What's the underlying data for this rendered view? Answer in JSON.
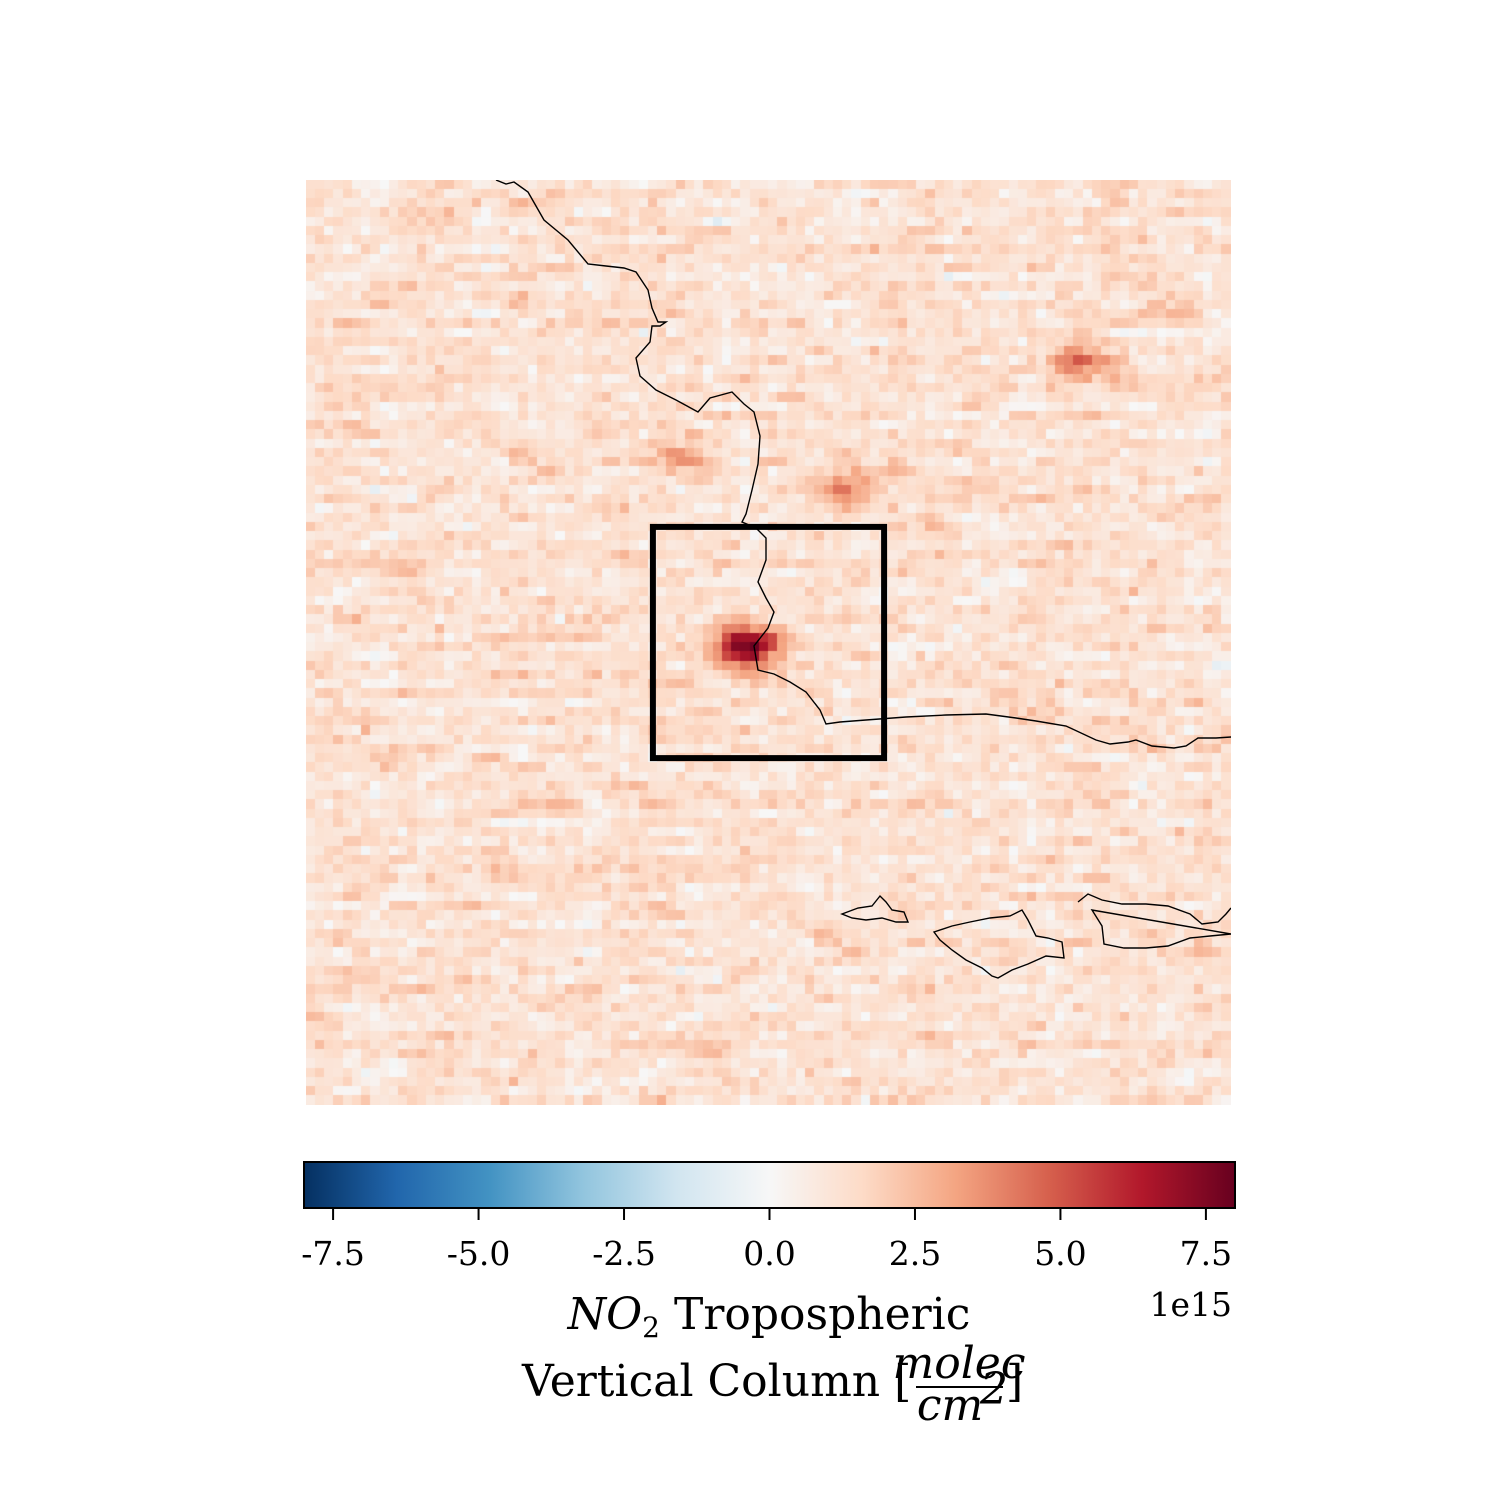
{
  "chart_data": {
    "type": "heatmap",
    "title": "",
    "variable": "NO2 Tropospheric Vertical Column",
    "colormap": "RdBu_r",
    "value_range": [
      -8000000000000000.0,
      8000000000000000.0
    ],
    "background_level": 1200000000000000.0,
    "hotspots": [
      {
        "x": 0.47,
        "y": 0.5,
        "value": 8000000000000000.0
      },
      {
        "x": 0.58,
        "y": 0.33,
        "value": 4000000000000000.0
      },
      {
        "x": 0.83,
        "y": 0.19,
        "value": 4500000000000000.0
      },
      {
        "x": 0.4,
        "y": 0.29,
        "value": 3500000000000000.0
      }
    ],
    "annotation_box": {
      "x0": 0.375,
      "y0": 0.375,
      "x1": 0.625,
      "y1": 0.625
    },
    "coastline": true,
    "colorbar": {
      "orientation": "horizontal",
      "ticks": [
        -7.5,
        -5.0,
        -2.5,
        0.0,
        2.5,
        5.0,
        7.5
      ],
      "tick_labels": [
        "-7.5",
        "-5.0",
        "-2.5",
        "0.0",
        "2.5",
        "5.0",
        "7.5"
      ],
      "range": [
        -8,
        8
      ],
      "scale_label": "1e15",
      "label_line1_var": "NO",
      "label_line1_sub": "2",
      "label_line1_rest": " Tropospheric",
      "label_line2": "Vertical Column [",
      "label_unit_num": "molec",
      "label_unit_den": "cm",
      "label_unit_den_exp": "2",
      "label_line2_close": "]"
    }
  }
}
